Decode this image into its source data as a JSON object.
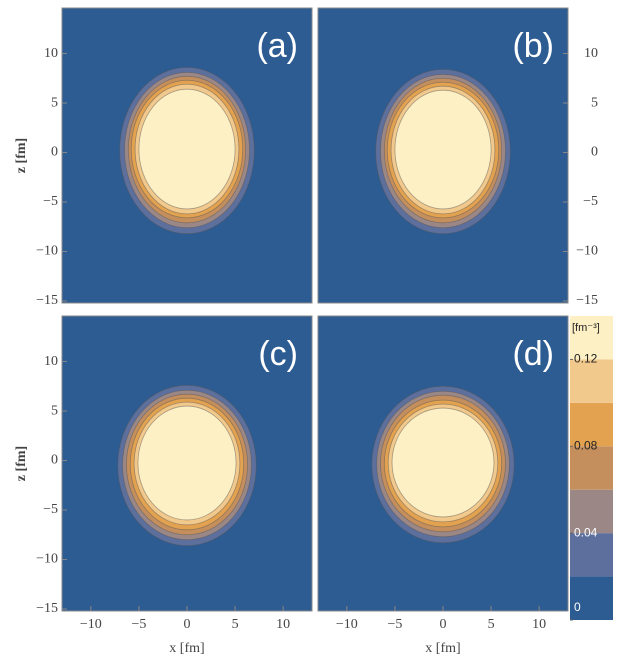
{
  "chart_data": [
    {
      "type": "contour",
      "panel_label": "(a)",
      "xlim": [
        -13,
        13
      ],
      "ylim": [
        -15.2,
        14.6
      ],
      "ylabel": "z [fm]",
      "ytick_side": "left",
      "yticks": [
        10,
        5,
        0,
        {
          "value": -5,
          "label": "−5"
        },
        {
          "value": -10,
          "label": "−10"
        },
        {
          "value": -15,
          "label": "−15"
        }
      ],
      "contours": [
        {
          "level": 0.02,
          "x": [
            -7,
            7
          ],
          "z": [
            -8.2,
            8.6
          ]
        },
        {
          "level": 0.04,
          "x": [
            -6.5,
            6.5
          ],
          "z": [
            -7.6,
            8.1
          ]
        },
        {
          "level": 0.06,
          "x": [
            -6.1,
            6.1
          ],
          "z": [
            -7.1,
            7.7
          ]
        },
        {
          "level": 0.08,
          "x": [
            -5.8,
            5.8
          ],
          "z": [
            -6.6,
            7.3
          ]
        },
        {
          "level": 0.1,
          "x": [
            -5.4,
            5.4
          ],
          "z": [
            -6.2,
            6.9
          ]
        },
        {
          "level": 0.12,
          "x": [
            -5,
            5
          ],
          "z": [
            -5.7,
            6.4
          ]
        }
      ]
    },
    {
      "type": "contour",
      "panel_label": "(b)",
      "xlim": [
        -13,
        13
      ],
      "ylim": [
        -15.2,
        14.6
      ],
      "ytick_side": "right",
      "yticks": [
        10,
        5,
        0,
        {
          "value": -5,
          "label": "−5"
        },
        {
          "value": -10,
          "label": "−10"
        },
        {
          "value": -15,
          "label": "−15"
        }
      ],
      "contours": [
        {
          "level": 0.02,
          "x": [
            -7,
            7
          ],
          "z": [
            -8.2,
            8.4
          ]
        },
        {
          "level": 0.04,
          "x": [
            -6.5,
            6.5
          ],
          "z": [
            -7.6,
            7.9
          ]
        },
        {
          "level": 0.06,
          "x": [
            -6.1,
            6.1
          ],
          "z": [
            -7.1,
            7.5
          ]
        },
        {
          "level": 0.08,
          "x": [
            -5.8,
            5.8
          ],
          "z": [
            -6.6,
            7.1
          ]
        },
        {
          "level": 0.1,
          "x": [
            -5.4,
            5.4
          ],
          "z": [
            -6.2,
            6.7
          ]
        },
        {
          "level": 0.12,
          "x": [
            -5,
            5
          ],
          "z": [
            -5.7,
            6.3
          ]
        }
      ]
    },
    {
      "type": "contour",
      "panel_label": "(c)",
      "xlim": [
        -13,
        13
      ],
      "ylim": [
        -15.2,
        14.6
      ],
      "xlabel": "x [fm]",
      "ylabel": "z [fm]",
      "ytick_side": "left",
      "xticks": [
        {
          "value": -10,
          "label": "−10"
        },
        {
          "value": -5,
          "label": "−5"
        },
        0,
        5,
        10
      ],
      "yticks": [
        10,
        5,
        0,
        {
          "value": -5,
          "label": "−5"
        },
        {
          "value": -10,
          "label": "−10"
        },
        {
          "value": -15,
          "label": "−15"
        }
      ],
      "contours": [
        {
          "level": 0.02,
          "x": [
            -7.2,
            7.2
          ],
          "z": [
            -8.6,
            7.6
          ]
        },
        {
          "level": 0.04,
          "x": [
            -6.7,
            6.7
          ],
          "z": [
            -8,
            7.1
          ]
        },
        {
          "level": 0.06,
          "x": [
            -6.3,
            6.3
          ],
          "z": [
            -7.5,
            6.7
          ]
        },
        {
          "level": 0.08,
          "x": [
            -5.9,
            5.9
          ],
          "z": [
            -7,
            6.3
          ]
        },
        {
          "level": 0.1,
          "x": [
            -5.5,
            5.5
          ],
          "z": [
            -6.5,
            5.9
          ]
        },
        {
          "level": 0.12,
          "x": [
            -5.1,
            5.1
          ],
          "z": [
            -6,
            5.5
          ]
        }
      ]
    },
    {
      "type": "contour",
      "panel_label": "(d)",
      "xlim": [
        -13,
        13
      ],
      "ylim": [
        -15.2,
        14.6
      ],
      "xlabel": "x [fm]",
      "xticks": [
        {
          "value": -10,
          "label": "−10"
        },
        {
          "value": -5,
          "label": "−5"
        },
        0,
        5,
        10
      ],
      "contours": [
        {
          "level": 0.02,
          "x": [
            -7.4,
            7.4
          ],
          "z": [
            -8.3,
            7.5
          ]
        },
        {
          "level": 0.04,
          "x": [
            -6.9,
            6.9
          ],
          "z": [
            -7.7,
            7
          ]
        },
        {
          "level": 0.06,
          "x": [
            -6.5,
            6.5
          ],
          "z": [
            -7.2,
            6.6
          ]
        },
        {
          "level": 0.08,
          "x": [
            -6.1,
            6.1
          ],
          "z": [
            -6.7,
            6.1
          ]
        },
        {
          "level": 0.1,
          "x": [
            -5.7,
            5.7
          ],
          "z": [
            -6.2,
            5.7
          ]
        },
        {
          "level": 0.12,
          "x": [
            -5.3,
            5.3
          ],
          "z": [
            -5.7,
            5.3
          ]
        }
      ]
    }
  ],
  "colorbar": {
    "label": "[fm⁻³]",
    "lim": [
      0,
      0.14
    ],
    "levels": [
      0,
      0.02,
      0.04,
      0.06,
      0.08,
      0.1,
      0.12,
      0.14
    ],
    "colors": [
      "#2d5c92",
      "#5d6f9c",
      "#9b8886",
      "#c48f5c",
      "#e3a24f",
      "#f2c98c",
      "#fdf0c4"
    ],
    "ticks": [
      0,
      0.04,
      0.08,
      0.12
    ]
  }
}
